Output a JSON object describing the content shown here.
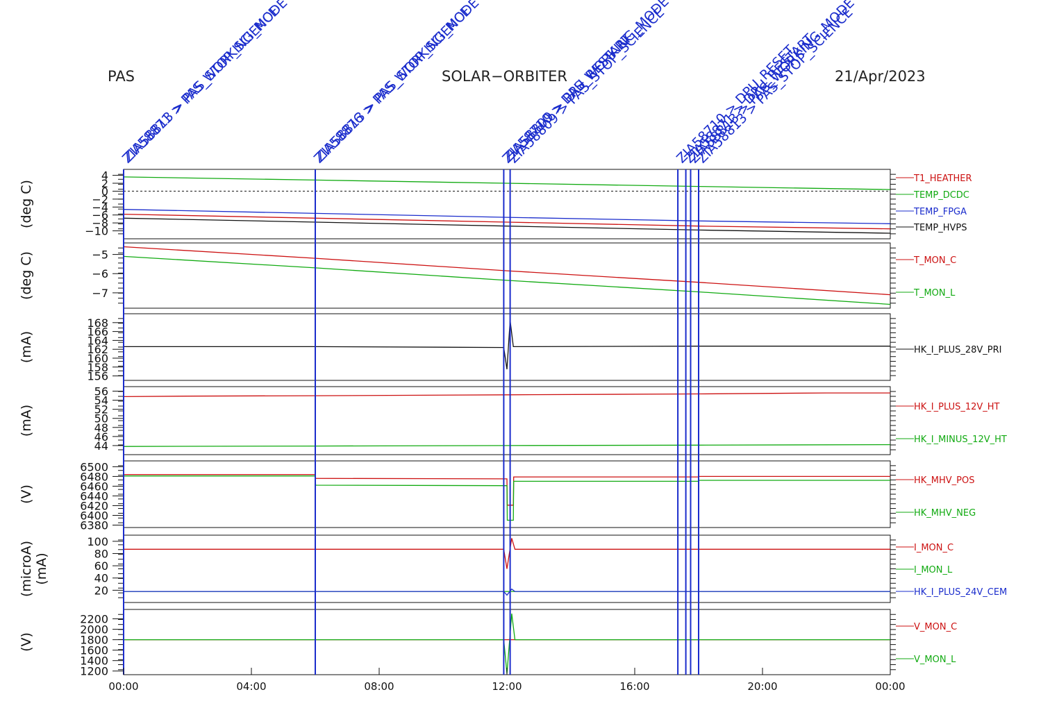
{
  "header": {
    "instrument": "PAS",
    "mission": "SOLAR−ORBITER",
    "date": "21/Apr/2023"
  },
  "chart_data": {
    "type": "line",
    "x_ticks": [
      "00:00",
      "04:00",
      "08:00",
      "12:00",
      "16:00",
      "20:00",
      "00:00"
    ],
    "x_range_hours": [
      0,
      24
    ],
    "events": [
      {
        "t": 0.0,
        "labels": [
          "ZIA58871 > PAS_WORKING_MODE",
          "ZIA58813 > PAS_STOP_SCIENCE"
        ]
      },
      {
        "t": 6.0,
        "labels": [
          "ZIA58876 > PAS_WORKING_MODE",
          "ZIA58813 > PAS_STOP_SCIENCE"
        ]
      },
      {
        "t": 11.9,
        "labels": [
          "ZIA58710 > DPU_RESTART",
          "ZIA58809 > PAS_WORKING_MODE"
        ]
      },
      {
        "t": 12.1,
        "labels": [
          "ZIA58809 > PAS_STOP_SCIENCE"
        ]
      },
      {
        "t": 17.35,
        "labels": [
          "ZIA58710 > DPU_RESET"
        ]
      },
      {
        "t": 17.6,
        "labels": [
          "ZIA58871 > DPU_RESTART"
        ]
      },
      {
        "t": 17.75,
        "labels": [
          "ZIA58813 > PAS_WORKING_MODE"
        ]
      },
      {
        "t": 18.0,
        "labels": [
          "ZIA58813 > PAS_STOP_SCIENCE"
        ]
      }
    ],
    "panels": [
      {
        "ylabel": "(deg C)",
        "ylim": [
          -12,
          5.5
        ],
        "yticks": [
          "4",
          "2",
          "0",
          "−2",
          "−4",
          "−6",
          "−8",
          "−10"
        ],
        "ytick_values": [
          4,
          2,
          0,
          -2,
          -4,
          -6,
          -8,
          -10
        ],
        "zero_line": true,
        "series": [
          {
            "name": "T1_HEATHER",
            "color": "#cc1111",
            "points": [
              [
                0,
                -5.8
              ],
              [
                6,
                -6.8
              ],
              [
                12,
                -7.8
              ],
              [
                18,
                -8.8
              ],
              [
                24,
                -9.5
              ]
            ]
          },
          {
            "name": "TEMP_DCDC",
            "color": "#11aa11",
            "points": [
              [
                0,
                3.6
              ],
              [
                6,
                2.8
              ],
              [
                12,
                2.0
              ],
              [
                18,
                1.2
              ],
              [
                24,
                0.4
              ]
            ]
          },
          {
            "name": "TEMP_FPGA",
            "color": "#1a2ccc",
            "points": [
              [
                0,
                -4.6
              ],
              [
                6,
                -5.6
              ],
              [
                12,
                -6.6
              ],
              [
                18,
                -7.5
              ],
              [
                24,
                -8.2
              ]
            ]
          },
          {
            "name": "TEMP_HVPS",
            "color": "#111111",
            "points": [
              [
                0,
                -6.8
              ],
              [
                6,
                -7.8
              ],
              [
                12,
                -8.8
              ],
              [
                18,
                -9.8
              ],
              [
                24,
                -10.6
              ]
            ]
          }
        ]
      },
      {
        "ylabel": "(deg C)",
        "ylim": [
          -7.8,
          -4.4
        ],
        "yticks": [
          "−5",
          "−6",
          "−7"
        ],
        "ytick_values": [
          -5,
          -6,
          -7
        ],
        "series": [
          {
            "name": "T_MON_C",
            "color": "#cc1111",
            "points": [
              [
                0,
                -4.6
              ],
              [
                6,
                -5.2
              ],
              [
                12,
                -5.85
              ],
              [
                18,
                -6.45
              ],
              [
                24,
                -7.1
              ]
            ]
          },
          {
            "name": "T_MON_L",
            "color": "#11aa11",
            "points": [
              [
                0,
                -5.1
              ],
              [
                6,
                -5.7
              ],
              [
                12,
                -6.35
              ],
              [
                18,
                -6.95
              ],
              [
                24,
                -7.6
              ]
            ]
          }
        ]
      },
      {
        "ylabel": "(mA)",
        "ylim": [
          155,
          170
        ],
        "yticks": [
          "168",
          "166",
          "164",
          "162",
          "160",
          "158",
          "156"
        ],
        "ytick_values": [
          168,
          166,
          164,
          162,
          160,
          158,
          156
        ],
        "series": [
          {
            "name": "HK_I_PLUS_28V_PRI",
            "color": "#111111",
            "points": [
              [
                0,
                162.6
              ],
              [
                6,
                162.6
              ],
              [
                11.9,
                162.4
              ],
              [
                12.0,
                157.5
              ],
              [
                12.1,
                168.5
              ],
              [
                12.2,
                162.6
              ],
              [
                18,
                162.7
              ],
              [
                24,
                162.7
              ]
            ]
          }
        ]
      },
      {
        "ylabel": "(mA)",
        "ylim": [
          42,
          57
        ],
        "yticks": [
          "56",
          "54",
          "52",
          "50",
          "48",
          "46",
          "44"
        ],
        "ytick_values": [
          56,
          54,
          52,
          50,
          48,
          46,
          44
        ],
        "series": [
          {
            "name": "HK_I_PLUS_12V_HT",
            "color": "#cc1111",
            "points": [
              [
                0,
                54.8
              ],
              [
                2,
                54.9
              ],
              [
                6,
                55.0
              ],
              [
                12,
                55.2
              ],
              [
                18,
                55.4
              ],
              [
                22,
                55.6
              ],
              [
                24,
                55.6
              ]
            ]
          },
          {
            "name": "HK_I_MINUS_12V_HT",
            "color": "#11aa11",
            "points": [
              [
                0,
                43.8
              ],
              [
                6,
                43.9
              ],
              [
                12,
                44.0
              ],
              [
                18,
                44.1
              ],
              [
                24,
                44.2
              ]
            ]
          }
        ]
      },
      {
        "ylabel": "(V)",
        "ylim": [
          6375,
          6512
        ],
        "yticks": [
          "6500",
          "6480",
          "6460",
          "6440",
          "6420",
          "6400",
          "6380"
        ],
        "ytick_values": [
          6500,
          6480,
          6460,
          6440,
          6420,
          6400,
          6380
        ],
        "series": [
          {
            "name": "HK_MHV_POS",
            "color": "#cc1111",
            "points": [
              [
                0,
                6484
              ],
              [
                6,
                6484
              ],
              [
                6.01,
                6476
              ],
              [
                12,
                6475
              ],
              [
                12.01,
                6421
              ],
              [
                12.2,
                6421
              ],
              [
                12.21,
                6479
              ],
              [
                18,
                6479
              ],
              [
                18.01,
                6480
              ],
              [
                24,
                6480
              ]
            ]
          },
          {
            "name": "HK_MHV_NEG",
            "color": "#11aa11",
            "points": [
              [
                0,
                6481
              ],
              [
                6,
                6481
              ],
              [
                6.01,
                6462
              ],
              [
                12,
                6461
              ],
              [
                12.01,
                6390
              ],
              [
                12.2,
                6390
              ],
              [
                12.21,
                6470
              ],
              [
                18,
                6470
              ],
              [
                18.01,
                6472
              ],
              [
                24,
                6472
              ]
            ]
          }
        ]
      },
      {
        "ylabel": "(microA)",
        "ylabel2": "(mA)",
        "ylim": [
          0,
          110
        ],
        "yticks": [
          "100",
          "80",
          "60",
          "40",
          "20"
        ],
        "ytick_values": [
          100,
          80,
          60,
          40,
          20
        ],
        "series": [
          {
            "name": "I_MON_C",
            "color": "#cc1111",
            "points": [
              [
                0,
                87
              ],
              [
                11.9,
                87
              ],
              [
                12.0,
                55
              ],
              [
                12.15,
                105
              ],
              [
                12.25,
                87
              ],
              [
                24,
                87
              ]
            ]
          },
          {
            "name": "I_MON_L",
            "color": "#11aa11",
            "points": [
              [
                0,
                18
              ],
              [
                24,
                18
              ]
            ]
          },
          {
            "name": "HK_I_PLUS_24V_CEM",
            "color": "#1a2ccc",
            "points": [
              [
                0,
                18
              ],
              [
                11.9,
                18
              ],
              [
                12.0,
                12
              ],
              [
                12.15,
                22
              ],
              [
                12.25,
                18
              ],
              [
                24,
                18
              ]
            ]
          }
        ]
      },
      {
        "ylabel": "(V)",
        "ylim": [
          1130,
          2380
        ],
        "yticks": [
          "2200",
          "2000",
          "1800",
          "1600",
          "1400",
          "1200"
        ],
        "ytick_values": [
          2200,
          2000,
          1800,
          1600,
          1400,
          1200
        ],
        "series": [
          {
            "name": "V_MON_C",
            "color": "#cc1111",
            "points": [
              [
                0,
                1800
              ],
              [
                24,
                1800
              ]
            ]
          },
          {
            "name": "V_MON_L",
            "color": "#11aa11",
            "points": [
              [
                0,
                1800
              ],
              [
                11.9,
                1800
              ],
              [
                12.0,
                1150
              ],
              [
                12.15,
                2300
              ],
              [
                12.25,
                1800
              ],
              [
                24,
                1800
              ]
            ]
          }
        ]
      }
    ]
  }
}
